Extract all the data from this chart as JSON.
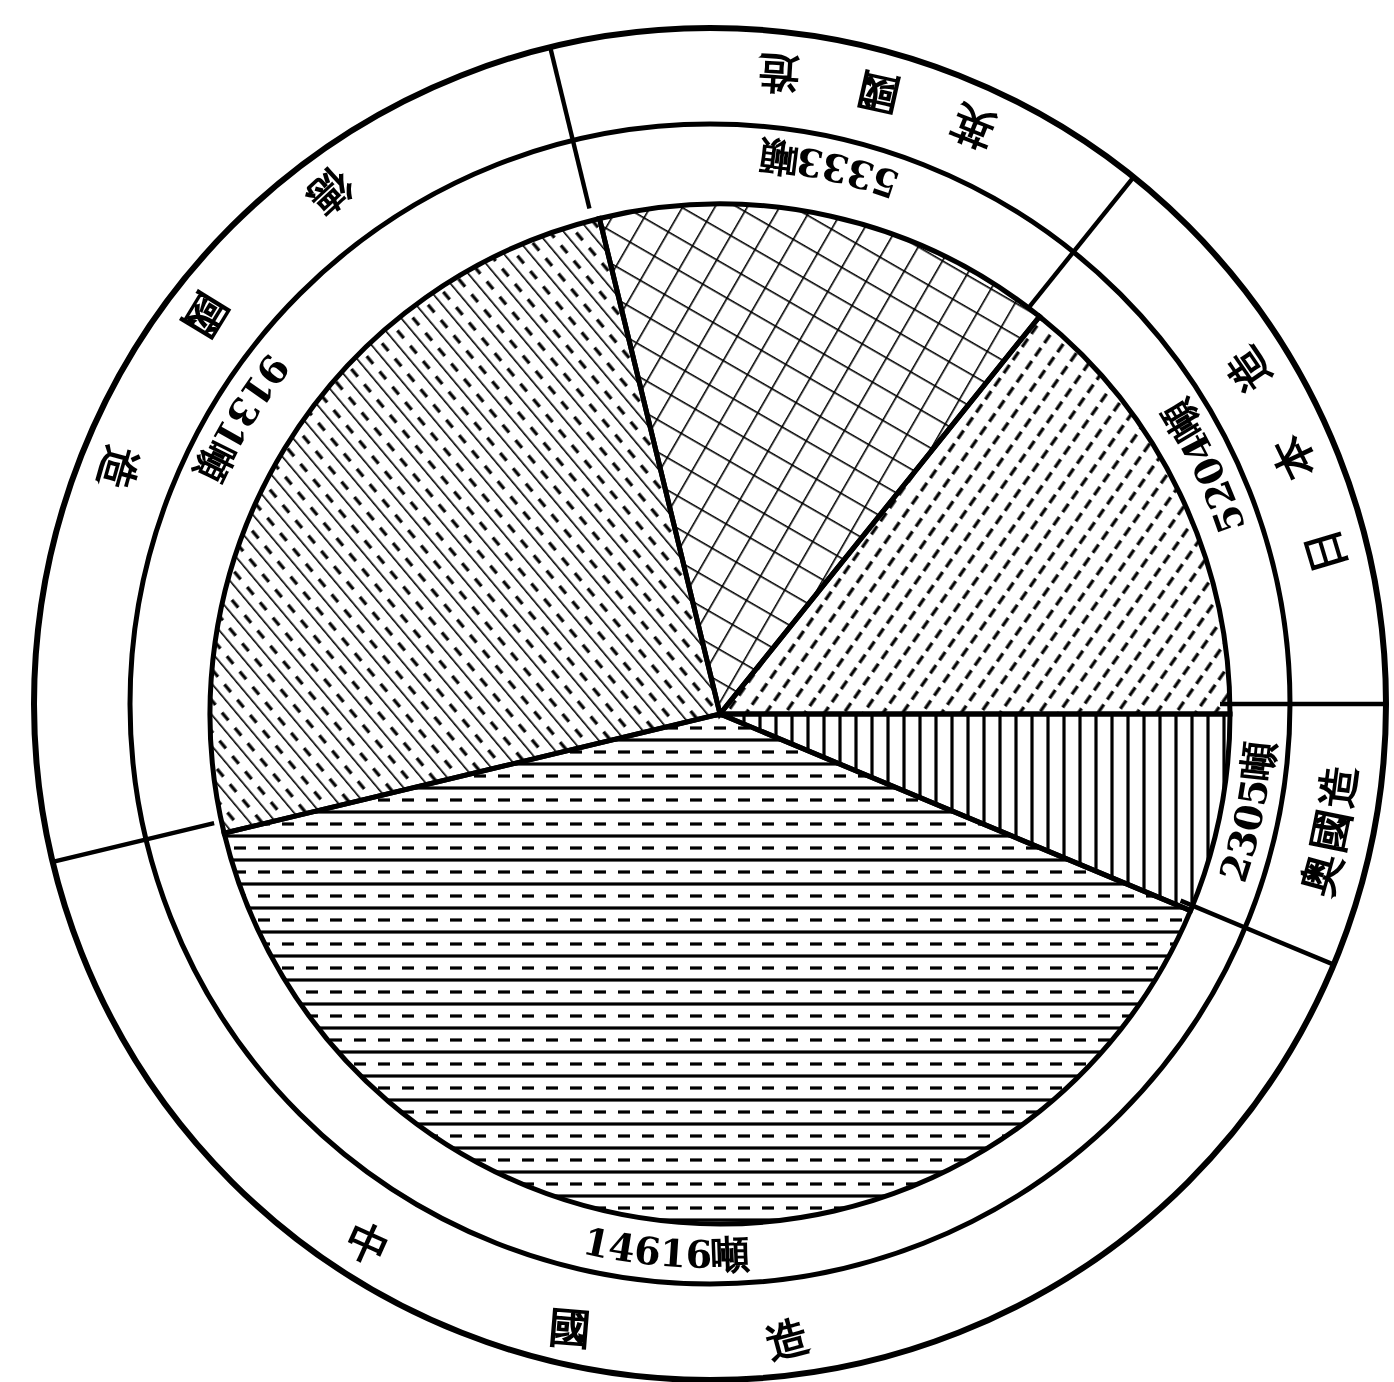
{
  "chart_data": {
    "type": "pie",
    "categories": [
      "奥國造",
      "中國造",
      "德國造",
      "英國造",
      "日本造"
    ],
    "values": [
      2305,
      14616,
      9131,
      5333,
      5204
    ],
    "value_labels": [
      "2305噸",
      "14616噸",
      "9131噸",
      "5333噸",
      "5204噸"
    ],
    "colors": [
      "#000000",
      "#000000",
      "#000000",
      "#000000",
      "#000000"
    ],
    "legend": false
  }
}
